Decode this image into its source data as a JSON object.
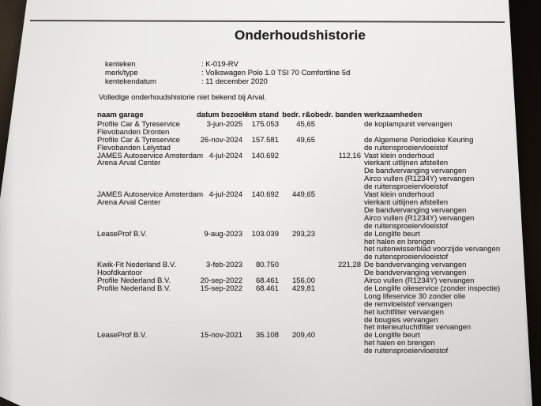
{
  "title": "Onderhoudshistorie",
  "vehicle": {
    "fields": [
      {
        "label": "kenteken",
        "value": ": K-019-RV"
      },
      {
        "label": "merk/type",
        "value": ": Volkswagen Polo 1.0 TSI 70 Comfortline 5d"
      },
      {
        "label": "kentekendatum",
        "value": ": 11 december 2020"
      }
    ]
  },
  "note": "Volledige onderhoudshistorie niet bekend bij Arval.",
  "table": {
    "headers": [
      "naam garage",
      "datum bezoek",
      "km stand",
      "bedr. r&o",
      "bedr. banden",
      "werkzaamheden"
    ],
    "rows": [
      {
        "g1": "Profile Car & Tyreservice",
        "g2": "Flevobanden Dronten",
        "datum": "3-jun-2025",
        "km": "175.053",
        "ro": "45,65",
        "banden": "",
        "werk": [
          "de koplampunit vervangen"
        ]
      },
      {
        "g1": "Profile Car & Tyreservice",
        "g2": "Flevobanden Lelystad",
        "datum": "26-nov-2024",
        "km": "157.581",
        "ro": "49,65",
        "banden": "",
        "werk": [
          "de Algemene Periodieke Keuring",
          "de ruitensproeiervloeistof"
        ]
      },
      {
        "g1": "JAMES Autoservice Amsterdam",
        "g2": "Arena Arval Center",
        "datum": "4-jul-2024",
        "km": "140.692",
        "ro": "",
        "banden": "112,16",
        "werk": [
          "Vast klein onderhoud",
          "vierkant uitlijnen afstellen",
          "De bandvervanging vervangen",
          "Airco vullen (R1234Y) vervangen",
          "de ruitensproeiervloeistof"
        ]
      },
      {
        "g1": "JAMES Autoservice Amsterdam",
        "g2": "Arena Arval Center",
        "datum": "4-jul-2024",
        "km": "140.692",
        "ro": "449,65",
        "banden": "",
        "werk": [
          "Vast klein onderhoud",
          "vierkant uitlijnen afstellen",
          "De bandvervanging vervangen",
          "Airco vullen (R1234Y) vervangen",
          "de ruitensproeiervloeistof"
        ]
      },
      {
        "g1": "LeaseProf B.V.",
        "g2": "",
        "datum": "9-aug-2023",
        "km": "103.039",
        "ro": "293,23",
        "banden": "",
        "werk": [
          "de Longlife beurt",
          "het halen en brengen",
          "het ruitenwisserblad voorzijde vervangen",
          "de ruitensproeiervloeistof"
        ]
      },
      {
        "g1": "Kwik-Fit Nederland B.V.",
        "g2": "Hoofdkantoor",
        "datum": "3-feb-2023",
        "km": "80.750",
        "ro": "",
        "banden": "221,28",
        "werk": [
          "De bandvervanging vervangen",
          "De bandvervanging vervangen"
        ]
      },
      {
        "g1": "Profile Nederland B.V.",
        "g2": "",
        "datum": "20-sep-2022",
        "km": "68.461",
        "ro": "156,00",
        "banden": "",
        "werk": [
          "Airco vullen (R1234Y) vervangen"
        ]
      },
      {
        "g1": "Profile Nederland B.V.",
        "g2": "",
        "datum": "15-sep-2022",
        "km": "68.461",
        "ro": "429,81",
        "banden": "",
        "werk": [
          "de Longlife olieservice (zonder inspectie)",
          "Long lifeservice 30 zonder olie",
          "de remvloeistof vervangen",
          "het luchtfilter vervangen",
          "de bougies vervangen",
          "het interieurluchtfilter vervangen"
        ]
      },
      {
        "g1": "LeaseProf B.V.",
        "g2": "",
        "datum": "15-nov-2021",
        "km": "35.108",
        "ro": "209,40",
        "banden": "",
        "werk": [
          "de Longlife beurt",
          "het halen en brengen",
          "de ruitensproeiervloeistof"
        ]
      }
    ]
  },
  "colors": {
    "paper": "#eeedeb",
    "ink": "#2e2d2c",
    "desk_dark": "#130e0b",
    "rule_line": "#4f4d4b"
  }
}
